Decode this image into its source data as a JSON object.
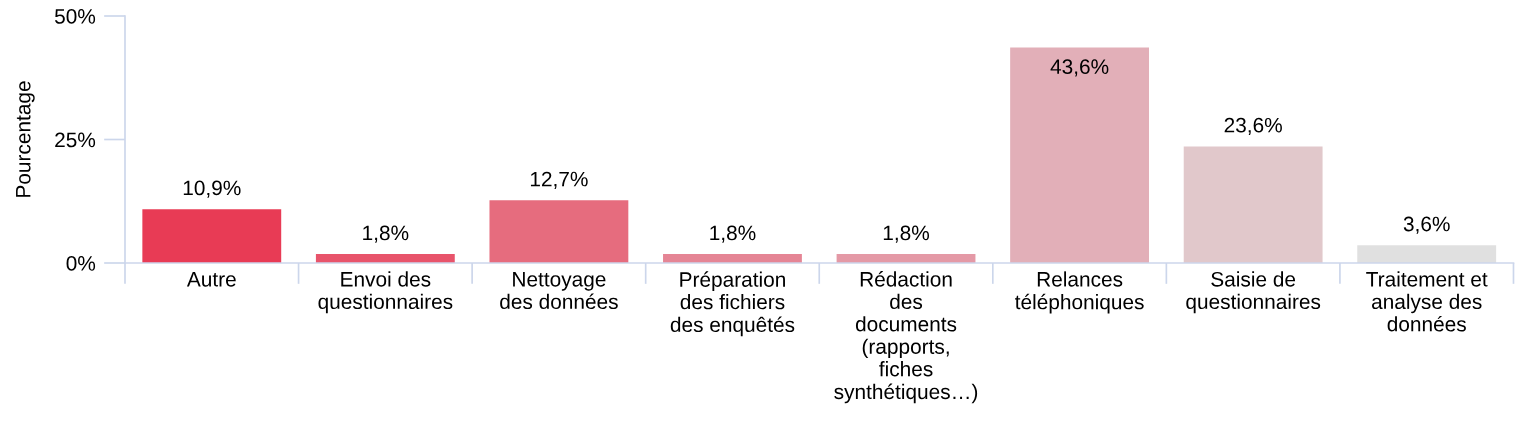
{
  "chart_data": {
    "type": "bar",
    "ylabel": "Pourcentage",
    "categories": [
      "Autre",
      "Envoi des\nquestionnaires",
      "Nettoyage\ndes données",
      "Préparation\ndes fichiers\ndes enquêtés",
      "Rédaction\ndes\ndocuments\n(rapports,\nfiches\nsynthétiques…)",
      "Relances\ntéléphoniques",
      "Saisie de\nquestionnaires",
      "Traitement et\nanalyse des\ndonnées"
    ],
    "values": [
      10.9,
      1.8,
      12.7,
      1.8,
      1.8,
      43.6,
      23.6,
      3.6
    ],
    "value_labels": [
      "10,9%",
      "1,8%",
      "12,7%",
      "1,8%",
      "1,8%",
      "43,6%",
      "23,6%",
      "3,6%"
    ],
    "colors": [
      "#e83b55",
      "#e8546b",
      "#e66c7e",
      "#e58595",
      "#e499a6",
      "#e2afb8",
      "#e1c8cb",
      "#e0e0e0"
    ],
    "ylim": [
      0,
      50
    ],
    "yticks": [
      {
        "value": 0,
        "label": "0%"
      },
      {
        "value": 25,
        "label": "25%"
      },
      {
        "value": 50,
        "label": "50%"
      }
    ],
    "grid": false
  }
}
